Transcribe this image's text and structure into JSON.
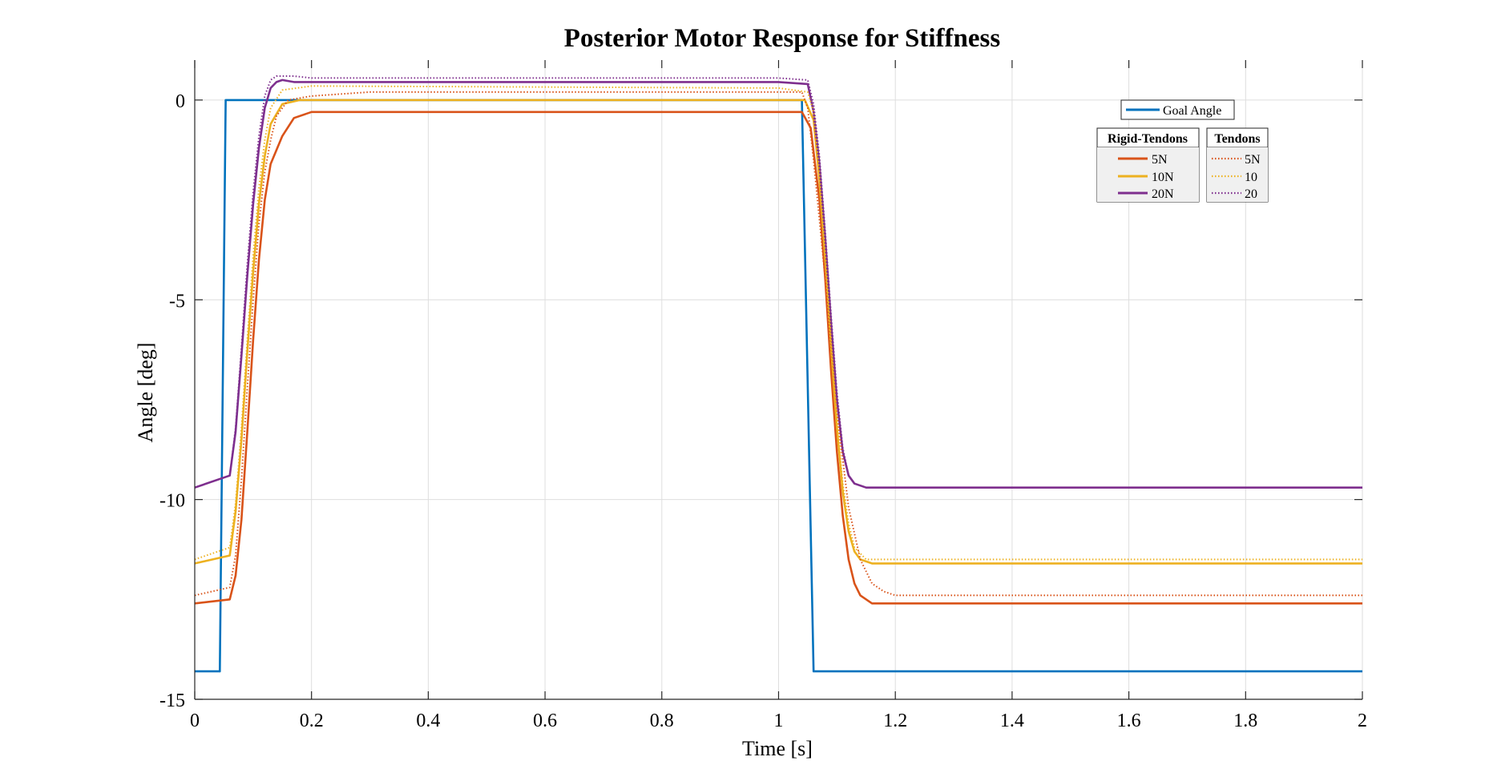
{
  "chart_data": {
    "type": "line",
    "title": "Posterior Motor Response for Stiffness",
    "xlabel": "Time [s]",
    "ylabel": "Angle [deg]",
    "xlim": [
      0,
      2
    ],
    "ylim": [
      -15,
      1
    ],
    "x_ticks": [
      0,
      0.2,
      0.4,
      0.6,
      0.8,
      1,
      1.2,
      1.4,
      1.6,
      1.8,
      2
    ],
    "x_tick_labels": [
      "0",
      "0.2",
      "0.4",
      "0.6",
      "0.8",
      "1",
      "1.2",
      "1.4",
      "1.6",
      "1.8",
      "2"
    ],
    "y_ticks": [
      0,
      -5,
      -10,
      -15
    ],
    "y_tick_labels": [
      "0",
      "-5",
      "-10",
      "-15"
    ],
    "grid": true,
    "legend_placement": "top-right",
    "legend_goal": {
      "label": "Goal Angle",
      "color": "#0072BD"
    },
    "legend_rigid": {
      "title": "Rigid-Tendons",
      "labels": [
        "5N",
        "10N",
        "20N"
      ]
    },
    "legend_tendons": {
      "title": "Tendons",
      "labels": [
        "5N",
        "10",
        "20"
      ]
    },
    "series": [
      {
        "name": "Goal Angle",
        "color": "#0072BD",
        "style": "solid",
        "x": [
          0,
          0.043,
          0.053,
          1.04,
          1.06,
          2
        ],
        "y": [
          -14.3,
          -14.3,
          0,
          0,
          -14.3,
          -14.3
        ]
      },
      {
        "name": "5N",
        "group": "Rigid-Tendons",
        "color": "#D95319",
        "style": "solid",
        "x": [
          0,
          0.06,
          0.07,
          0.08,
          0.09,
          0.1,
          0.11,
          0.12,
          0.13,
          0.15,
          0.17,
          0.2,
          0.5,
          0.8,
          1.0,
          1.04,
          1.055,
          1.07,
          1.08,
          1.09,
          1.1,
          1.11,
          1.12,
          1.13,
          1.14,
          1.16,
          1.2,
          2
        ],
        "y": [
          -12.6,
          -12.5,
          -11.9,
          -10.5,
          -8.3,
          -6,
          -4,
          -2.5,
          -1.6,
          -0.9,
          -0.45,
          -0.3,
          -0.3,
          -0.3,
          -0.3,
          -0.3,
          -0.7,
          -2.5,
          -4.5,
          -6.8,
          -8.8,
          -10.4,
          -11.5,
          -12.1,
          -12.4,
          -12.6,
          -12.6,
          -12.6
        ]
      },
      {
        "name": "10N",
        "group": "Rigid-Tendons",
        "color": "#EDB120",
        "style": "solid",
        "x": [
          0,
          0.06,
          0.07,
          0.08,
          0.09,
          0.1,
          0.11,
          0.12,
          0.13,
          0.15,
          0.18,
          0.2,
          0.5,
          1.0,
          1.045,
          1.06,
          1.07,
          1.08,
          1.09,
          1.1,
          1.11,
          1.12,
          1.13,
          1.14,
          1.16,
          2
        ],
        "y": [
          -11.6,
          -11.4,
          -10.3,
          -8.5,
          -6.3,
          -4.3,
          -2.6,
          -1.4,
          -0.6,
          -0.1,
          0,
          0,
          0,
          0,
          0,
          -0.5,
          -2,
          -4,
          -6.2,
          -8.2,
          -9.8,
          -10.8,
          -11.3,
          -11.5,
          -11.6,
          -11.6
        ]
      },
      {
        "name": "20N",
        "group": "Rigid-Tendons",
        "color": "#7E2F8E",
        "style": "solid",
        "x": [
          0,
          0.06,
          0.07,
          0.08,
          0.09,
          0.1,
          0.11,
          0.12,
          0.13,
          0.14,
          0.15,
          0.17,
          0.2,
          1.0,
          1.05,
          1.06,
          1.07,
          1.08,
          1.09,
          1.1,
          1.11,
          1.12,
          1.13,
          1.15,
          2
        ],
        "y": [
          -9.7,
          -9.4,
          -8.3,
          -6.4,
          -4.4,
          -2.6,
          -1.2,
          -0.2,
          0.3,
          0.45,
          0.5,
          0.45,
          0.45,
          0.45,
          0.4,
          -0.3,
          -1.6,
          -3.5,
          -5.6,
          -7.5,
          -8.8,
          -9.4,
          -9.6,
          -9.7,
          -9.7
        ]
      },
      {
        "name": "5N",
        "group": "Tendons",
        "color": "#D95319",
        "style": "dotted",
        "x": [
          0,
          0.06,
          0.07,
          0.08,
          0.09,
          0.1,
          0.11,
          0.12,
          0.13,
          0.14,
          0.16,
          0.2,
          0.3,
          1.0,
          1.04,
          1.05,
          1.06,
          1.08,
          1.1,
          1.12,
          1.14,
          1.16,
          1.18,
          1.2,
          1.24,
          2
        ],
        "y": [
          -12.4,
          -12.2,
          -11.4,
          -9.5,
          -7.2,
          -5,
          -3.1,
          -1.8,
          -1,
          -0.4,
          0,
          0.1,
          0.2,
          0.2,
          0.2,
          -0.2,
          -1.5,
          -4.5,
          -7.8,
          -10.2,
          -11.5,
          -12.1,
          -12.3,
          -12.4,
          -12.4,
          -12.4
        ]
      },
      {
        "name": "10",
        "group": "Tendons",
        "color": "#EDB120",
        "style": "dotted",
        "x": [
          0,
          0.06,
          0.07,
          0.08,
          0.09,
          0.1,
          0.11,
          0.12,
          0.13,
          0.15,
          0.2,
          1.0,
          1.05,
          1.06,
          1.07,
          1.08,
          1.09,
          1.1,
          1.11,
          1.12,
          1.13,
          1.15,
          2
        ],
        "y": [
          -11.5,
          -11.2,
          -10.1,
          -8.2,
          -6,
          -3.9,
          -2.2,
          -1,
          -0.2,
          0.25,
          0.35,
          0.3,
          0.2,
          -0.3,
          -1.8,
          -3.8,
          -6,
          -8,
          -9.6,
          -10.6,
          -11.2,
          -11.5,
          -11.5
        ]
      },
      {
        "name": "20",
        "group": "Tendons",
        "color": "#7E2F8E",
        "style": "dotted",
        "x": [
          0,
          0.06,
          0.07,
          0.08,
          0.09,
          0.1,
          0.11,
          0.12,
          0.13,
          0.14,
          0.15,
          0.17,
          0.2,
          1.0,
          1.05,
          1.06,
          1.07,
          1.08,
          1.09,
          1.1,
          1.11,
          1.12,
          1.13,
          1.15,
          2
        ],
        "y": [
          -9.7,
          -9.4,
          -8.2,
          -6.2,
          -4.1,
          -2.3,
          -0.9,
          0.1,
          0.5,
          0.6,
          0.6,
          0.6,
          0.55,
          0.55,
          0.5,
          -0.1,
          -1.4,
          -3.3,
          -5.4,
          -7.3,
          -8.7,
          -9.4,
          -9.6,
          -9.7,
          -9.7
        ]
      }
    ]
  }
}
